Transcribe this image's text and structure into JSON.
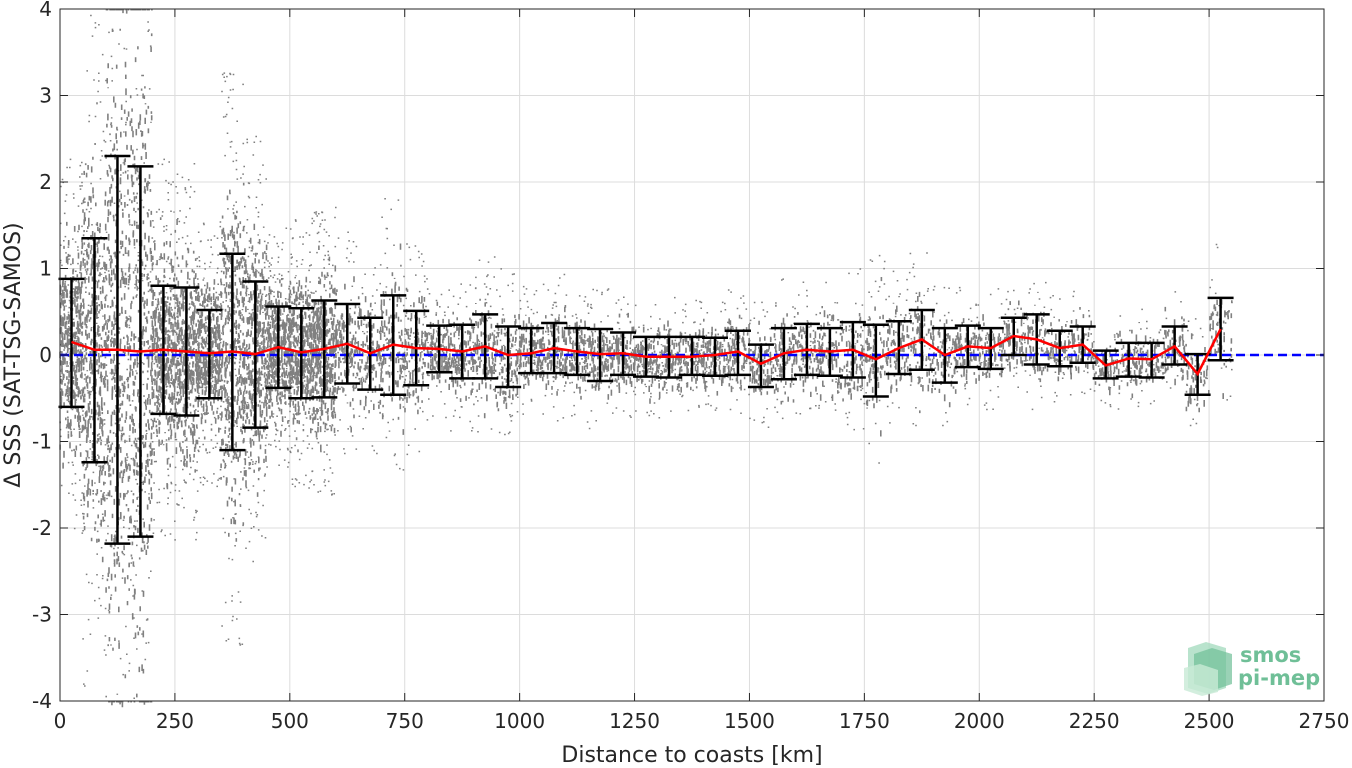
{
  "chart_data": {
    "type": "scatter",
    "xlabel": "Distance to coasts [km]",
    "ylabel": "Δ SSS (SAT-TSG-SAMOS)",
    "xlim": [
      0,
      2750
    ],
    "ylim": [
      -4,
      4
    ],
    "x_ticks": [
      0,
      250,
      500,
      750,
      1000,
      1250,
      1500,
      1750,
      2000,
      2250,
      2500,
      2750
    ],
    "y_ticks": [
      -4,
      -3,
      -2,
      -1,
      0,
      1,
      2,
      3,
      4
    ],
    "grid": true,
    "reference_line": {
      "y": 0,
      "color": "#0000ff",
      "style": "dashed"
    },
    "colors": {
      "scatter": "#808080",
      "mean_line": "#ff0000",
      "error_bars": "#000000"
    },
    "bin_centers": [
      25,
      75,
      125,
      175,
      225,
      275,
      325,
      375,
      425,
      475,
      525,
      575,
      625,
      675,
      725,
      775,
      825,
      875,
      925,
      975,
      1025,
      1075,
      1125,
      1175,
      1225,
      1275,
      1325,
      1375,
      1425,
      1475,
      1525,
      1575,
      1625,
      1675,
      1725,
      1775,
      1825,
      1875,
      1925,
      1975,
      2025,
      2075,
      2125,
      2175,
      2225,
      2275,
      2325,
      2375,
      2425,
      2475,
      2525
    ],
    "series": [
      {
        "name": "",
        "role": "bin-mean",
        "values": [
          0.15,
          0.06,
          0.06,
          0.04,
          0.06,
          0.04,
          0.02,
          0.04,
          0.01,
          0.09,
          0.03,
          0.07,
          0.13,
          0.02,
          0.12,
          0.08,
          0.07,
          0.04,
          0.1,
          0.0,
          0.02,
          0.08,
          0.04,
          0.01,
          0.02,
          -0.02,
          -0.02,
          -0.02,
          0.0,
          0.04,
          -0.1,
          0.02,
          0.06,
          0.04,
          0.06,
          -0.05,
          0.08,
          0.18,
          0.0,
          0.1,
          0.08,
          0.22,
          0.18,
          0.08,
          0.12,
          -0.12,
          -0.04,
          -0.05,
          0.1,
          -0.22,
          0.3
        ]
      },
      {
        "name": "",
        "role": "bin-upper",
        "values": [
          0.88,
          1.35,
          2.3,
          2.18,
          0.8,
          0.78,
          0.52,
          1.17,
          0.85,
          0.56,
          0.54,
          0.63,
          0.59,
          0.43,
          0.69,
          0.51,
          0.34,
          0.35,
          0.47,
          0.33,
          0.31,
          0.37,
          0.31,
          0.3,
          0.26,
          0.21,
          0.21,
          0.21,
          0.2,
          0.28,
          0.12,
          0.31,
          0.36,
          0.31,
          0.38,
          0.35,
          0.39,
          0.52,
          0.31,
          0.34,
          0.31,
          0.43,
          0.47,
          0.28,
          0.33,
          0.05,
          0.14,
          0.14,
          0.33,
          0.01,
          0.66
        ]
      },
      {
        "name": "",
        "role": "bin-lower",
        "values": [
          -0.6,
          -1.24,
          -2.18,
          -2.1,
          -0.68,
          -0.7,
          -0.5,
          -1.1,
          -0.84,
          -0.38,
          -0.5,
          -0.49,
          -0.33,
          -0.4,
          -0.46,
          -0.35,
          -0.2,
          -0.27,
          -0.27,
          -0.37,
          -0.21,
          -0.21,
          -0.23,
          -0.3,
          -0.23,
          -0.25,
          -0.26,
          -0.23,
          -0.24,
          -0.23,
          -0.37,
          -0.28,
          -0.23,
          -0.24,
          -0.26,
          -0.48,
          -0.22,
          -0.17,
          -0.32,
          -0.14,
          -0.16,
          0.0,
          -0.11,
          -0.13,
          -0.09,
          -0.27,
          -0.25,
          -0.26,
          -0.11,
          -0.46,
          -0.06
        ]
      }
    ]
  },
  "watermark": {
    "line1": "smos",
    "line2": "pi-mep"
  }
}
